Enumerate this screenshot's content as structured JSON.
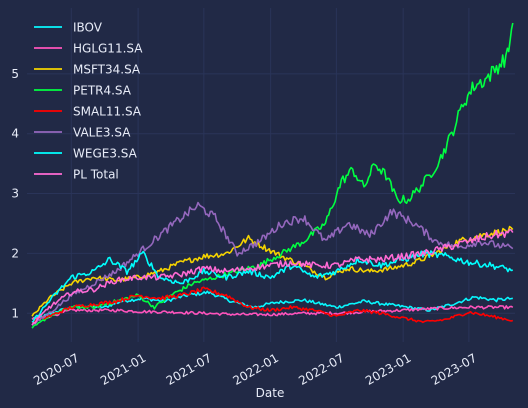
{
  "chart_data": {
    "type": "line",
    "title": "",
    "xlabel": "Date",
    "ylabel": "",
    "x_range": [
      "2020-03-01",
      "2023-11-05"
    ],
    "ylim": [
      0.52,
      6.1
    ],
    "x_ticks": [
      "2020-07",
      "2021-01",
      "2021-07",
      "2022-01",
      "2022-07",
      "2023-01",
      "2023-07"
    ],
    "y_ticks": [
      1,
      2,
      3,
      4,
      5
    ],
    "grid": true,
    "legend_position": "top-left",
    "series": [
      {
        "name": "IBOV",
        "color": "#08F7FE",
        "points": [
          [
            "2020-03-15",
            0.9
          ],
          [
            "2020-04-15",
            0.95
          ],
          [
            "2020-06-01",
            1.05
          ],
          [
            "2020-08-01",
            1.12
          ],
          [
            "2020-10-01",
            1.1
          ],
          [
            "2020-11-15",
            1.2
          ],
          [
            "2021-01-15",
            1.25
          ],
          [
            "2021-03-15",
            1.2
          ],
          [
            "2021-05-15",
            1.3
          ],
          [
            "2021-07-15",
            1.35
          ],
          [
            "2021-09-15",
            1.2
          ],
          [
            "2021-11-15",
            1.1
          ],
          [
            "2022-01-15",
            1.18
          ],
          [
            "2022-04-01",
            1.22
          ],
          [
            "2022-07-01",
            1.1
          ],
          [
            "2022-09-15",
            1.2
          ],
          [
            "2022-11-15",
            1.15
          ],
          [
            "2023-01-15",
            1.1
          ],
          [
            "2023-03-15",
            1.05
          ],
          [
            "2023-05-15",
            1.15
          ],
          [
            "2023-07-15",
            1.27
          ],
          [
            "2023-09-15",
            1.22
          ],
          [
            "2023-10-30",
            1.25
          ]
        ]
      },
      {
        "name": "HGLG11.SA",
        "color": "#FE53BB",
        "points": [
          [
            "2020-03-15",
            0.9
          ],
          [
            "2020-05-01",
            0.95
          ],
          [
            "2020-07-01",
            1.05
          ],
          [
            "2020-09-01",
            1.05
          ],
          [
            "2020-11-01",
            1.05
          ],
          [
            "2021-01-01",
            1.03
          ],
          [
            "2021-04-01",
            1.02
          ],
          [
            "2021-07-01",
            1.0
          ],
          [
            "2021-10-01",
            0.98
          ],
          [
            "2022-01-01",
            0.98
          ],
          [
            "2022-04-01",
            1.0
          ],
          [
            "2022-07-01",
            1.0
          ],
          [
            "2022-10-01",
            1.03
          ],
          [
            "2023-01-01",
            1.05
          ],
          [
            "2023-04-01",
            1.08
          ],
          [
            "2023-07-01",
            1.1
          ],
          [
            "2023-10-30",
            1.1
          ]
        ]
      },
      {
        "name": "MSFT34.SA",
        "color": "#F5D300",
        "points": [
          [
            "2020-03-15",
            0.95
          ],
          [
            "2020-05-01",
            1.25
          ],
          [
            "2020-07-01",
            1.5
          ],
          [
            "2020-09-01",
            1.6
          ],
          [
            "2020-11-01",
            1.55
          ],
          [
            "2021-01-01",
            1.6
          ],
          [
            "2021-03-01",
            1.7
          ],
          [
            "2021-05-01",
            1.85
          ],
          [
            "2021-07-01",
            1.95
          ],
          [
            "2021-09-01",
            2.0
          ],
          [
            "2021-11-01",
            2.25
          ],
          [
            "2021-12-15",
            2.1
          ],
          [
            "2022-02-01",
            1.95
          ],
          [
            "2022-04-01",
            1.8
          ],
          [
            "2022-06-01",
            1.6
          ],
          [
            "2022-08-01",
            1.75
          ],
          [
            "2022-10-01",
            1.7
          ],
          [
            "2022-12-01",
            1.75
          ],
          [
            "2023-02-01",
            1.85
          ],
          [
            "2023-04-01",
            2.0
          ],
          [
            "2023-06-01",
            2.2
          ],
          [
            "2023-08-01",
            2.3
          ],
          [
            "2023-10-30",
            2.4
          ]
        ]
      },
      {
        "name": "PETR4.SA",
        "color": "#00ff41",
        "points": [
          [
            "2020-03-15",
            0.75
          ],
          [
            "2020-05-01",
            0.95
          ],
          [
            "2020-07-01",
            1.1
          ],
          [
            "2020-09-01",
            1.1
          ],
          [
            "2020-11-01",
            1.2
          ],
          [
            "2021-01-01",
            1.3
          ],
          [
            "2021-02-15",
            1.1
          ],
          [
            "2021-04-01",
            1.3
          ],
          [
            "2021-06-01",
            1.5
          ],
          [
            "2021-08-01",
            1.6
          ],
          [
            "2021-10-01",
            1.7
          ],
          [
            "2021-12-01",
            1.8
          ],
          [
            "2022-02-01",
            2.0
          ],
          [
            "2022-04-01",
            2.2
          ],
          [
            "2022-06-01",
            2.5
          ],
          [
            "2022-07-15",
            3.2
          ],
          [
            "2022-08-15",
            3.4
          ],
          [
            "2022-09-15",
            3.1
          ],
          [
            "2022-10-15",
            3.5
          ],
          [
            "2022-11-15",
            3.3
          ],
          [
            "2022-12-15",
            2.9
          ],
          [
            "2023-01-15",
            2.9
          ],
          [
            "2023-02-15",
            3.1
          ],
          [
            "2023-03-15",
            3.3
          ],
          [
            "2023-04-15",
            3.6
          ],
          [
            "2023-05-15",
            4.0
          ],
          [
            "2023-06-15",
            4.5
          ],
          [
            "2023-07-15",
            4.8
          ],
          [
            "2023-08-15",
            4.9
          ],
          [
            "2023-09-15",
            5.1
          ],
          [
            "2023-10-15",
            5.3
          ],
          [
            "2023-10-30",
            5.85
          ]
        ]
      },
      {
        "name": "SMAL11.SA",
        "color": "#ff0000",
        "points": [
          [
            "2020-03-15",
            0.85
          ],
          [
            "2020-05-01",
            0.95
          ],
          [
            "2020-07-01",
            1.1
          ],
          [
            "2020-09-01",
            1.15
          ],
          [
            "2020-11-01",
            1.2
          ],
          [
            "2021-01-01",
            1.3
          ],
          [
            "2021-03-01",
            1.25
          ],
          [
            "2021-05-01",
            1.3
          ],
          [
            "2021-07-01",
            1.4
          ],
          [
            "2021-09-01",
            1.3
          ],
          [
            "2021-11-01",
            1.1
          ],
          [
            "2022-01-01",
            1.05
          ],
          [
            "2022-03-01",
            1.1
          ],
          [
            "2022-05-01",
            1.05
          ],
          [
            "2022-07-01",
            0.95
          ],
          [
            "2022-09-01",
            1.05
          ],
          [
            "2022-11-01",
            1.0
          ],
          [
            "2023-01-01",
            0.92
          ],
          [
            "2023-03-01",
            0.85
          ],
          [
            "2023-05-01",
            0.9
          ],
          [
            "2023-07-01",
            1.02
          ],
          [
            "2023-09-01",
            0.95
          ],
          [
            "2023-10-30",
            0.88
          ]
        ]
      },
      {
        "name": "VALE3.SA",
        "color": "#9467bd",
        "points": [
          [
            "2020-03-15",
            0.8
          ],
          [
            "2020-05-01",
            1.0
          ],
          [
            "2020-07-01",
            1.3
          ],
          [
            "2020-09-01",
            1.5
          ],
          [
            "2020-11-01",
            1.7
          ],
          [
            "2021-01-01",
            2.0
          ],
          [
            "2021-03-01",
            2.3
          ],
          [
            "2021-05-01",
            2.6
          ],
          [
            "2021-06-15",
            2.8
          ],
          [
            "2021-08-01",
            2.6
          ],
          [
            "2021-10-01",
            2.0
          ],
          [
            "2021-12-01",
            2.2
          ],
          [
            "2022-02-01",
            2.5
          ],
          [
            "2022-04-01",
            2.6
          ],
          [
            "2022-06-01",
            2.2
          ],
          [
            "2022-08-01",
            2.5
          ],
          [
            "2022-10-01",
            2.3
          ],
          [
            "2022-12-01",
            2.7
          ],
          [
            "2023-02-01",
            2.5
          ],
          [
            "2023-04-01",
            2.2
          ],
          [
            "2023-06-01",
            2.1
          ],
          [
            "2023-08-01",
            2.2
          ],
          [
            "2023-10-30",
            2.08
          ]
        ]
      },
      {
        "name": "WEGE3.SA",
        "color": "#00ffff",
        "points": [
          [
            "2020-03-15",
            0.85
          ],
          [
            "2020-05-01",
            1.2
          ],
          [
            "2020-07-01",
            1.6
          ],
          [
            "2020-09-01",
            1.7
          ],
          [
            "2020-10-15",
            1.9
          ],
          [
            "2020-12-01",
            1.7
          ],
          [
            "2021-01-15",
            2.0
          ],
          [
            "2021-03-01",
            1.6
          ],
          [
            "2021-05-01",
            1.5
          ],
          [
            "2021-07-01",
            1.7
          ],
          [
            "2021-09-01",
            1.6
          ],
          [
            "2021-11-01",
            1.7
          ],
          [
            "2022-01-01",
            1.6
          ],
          [
            "2022-03-01",
            1.8
          ],
          [
            "2022-05-01",
            1.6
          ],
          [
            "2022-07-01",
            1.7
          ],
          [
            "2022-09-01",
            1.9
          ],
          [
            "2022-11-01",
            1.8
          ],
          [
            "2023-01-01",
            1.9
          ],
          [
            "2023-03-01",
            2.0
          ],
          [
            "2023-05-01",
            1.95
          ],
          [
            "2023-07-01",
            1.85
          ],
          [
            "2023-09-01",
            1.8
          ],
          [
            "2023-10-30",
            1.72
          ]
        ]
      },
      {
        "name": "PL Total",
        "color": "#FF6AD5",
        "points": [
          [
            "2020-03-15",
            0.8
          ],
          [
            "2020-05-01",
            1.1
          ],
          [
            "2020-07-01",
            1.35
          ],
          [
            "2020-09-01",
            1.4
          ],
          [
            "2020-11-01",
            1.55
          ],
          [
            "2021-01-01",
            1.6
          ],
          [
            "2021-03-01",
            1.6
          ],
          [
            "2021-05-01",
            1.65
          ],
          [
            "2021-07-01",
            1.75
          ],
          [
            "2021-09-01",
            1.7
          ],
          [
            "2021-11-01",
            1.75
          ],
          [
            "2022-01-01",
            1.8
          ],
          [
            "2022-03-01",
            1.85
          ],
          [
            "2022-05-01",
            1.8
          ],
          [
            "2022-07-01",
            1.8
          ],
          [
            "2022-09-01",
            1.9
          ],
          [
            "2022-11-01",
            1.9
          ],
          [
            "2023-01-01",
            1.95
          ],
          [
            "2023-03-01",
            2.0
          ],
          [
            "2023-05-01",
            2.1
          ],
          [
            "2023-07-01",
            2.2
          ],
          [
            "2023-09-01",
            2.3
          ],
          [
            "2023-10-30",
            2.35
          ]
        ]
      }
    ]
  }
}
